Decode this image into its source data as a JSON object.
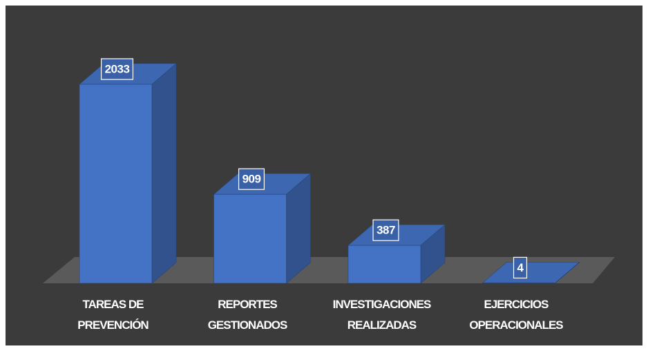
{
  "chart_data": {
    "type": "bar3d",
    "categories": [
      "TAREAS DE PREVENCIÓN",
      "REPORTES GESTIONADOS",
      "INVESTIGACIONES REALIZADAS",
      "EJERCICIOS OPERACIONALES"
    ],
    "values": [
      2033,
      909,
      387,
      4
    ],
    "color": "#4472c4",
    "background": "#3b3b3b",
    "floor_color": "#5a5a5a"
  }
}
